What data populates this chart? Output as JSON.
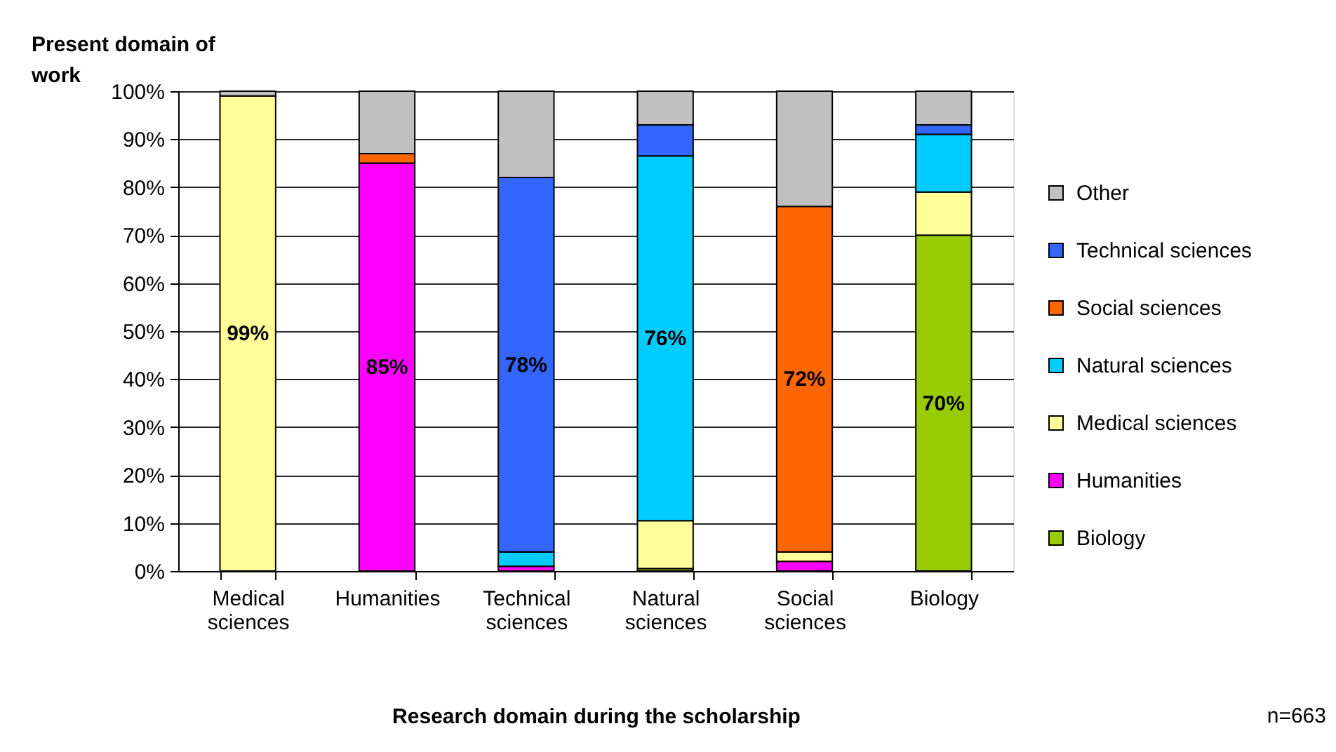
{
  "chart_data": {
    "type": "bar",
    "stacked": true,
    "ylabel": "Present domain of work",
    "xlabel": "Research domain during the scholarship",
    "annotations": [
      "n=663"
    ],
    "categories": [
      "Medical sciences",
      "Humanities",
      "Technical sciences",
      "Natural sciences",
      "Social sciences",
      "Biology"
    ],
    "series": [
      {
        "name": "Biology",
        "color": "#99cc00",
        "values": [
          null,
          null,
          null,
          0.5,
          null,
          70
        ],
        "value_labels": [
          null,
          null,
          null,
          null,
          null,
          "70%"
        ]
      },
      {
        "name": "Humanities",
        "color": "#ff00ff",
        "values": [
          null,
          85,
          1,
          null,
          2,
          null
        ],
        "value_labels": [
          null,
          "85%",
          null,
          null,
          null,
          null
        ]
      },
      {
        "name": "Medical sciences",
        "color": "#ffff99",
        "values": [
          99,
          null,
          null,
          10,
          2,
          9
        ],
        "value_labels": [
          "99%",
          null,
          null,
          null,
          null,
          null
        ]
      },
      {
        "name": "Natural sciences",
        "color": "#00ccff",
        "values": [
          null,
          null,
          3,
          76,
          null,
          12
        ],
        "value_labels": [
          null,
          null,
          null,
          "76%",
          null,
          null
        ]
      },
      {
        "name": "Social sciences",
        "color": "#ff6600",
        "values": [
          null,
          2,
          null,
          null,
          72,
          null
        ],
        "value_labels": [
          null,
          null,
          null,
          null,
          "72%",
          null
        ]
      },
      {
        "name": "Technical sciences",
        "color": "#3366ff",
        "values": [
          null,
          null,
          78,
          6.5,
          null,
          2
        ],
        "value_labels": [
          null,
          null,
          "78%",
          null,
          null,
          null
        ]
      },
      {
        "name": "Other",
        "color": "#c0c0c0",
        "values": [
          1,
          13,
          18,
          7,
          24,
          7
        ]
      }
    ],
    "ylim": [
      0,
      100
    ],
    "yticks": [
      {
        "value": 0,
        "label": "0%"
      },
      {
        "value": 10,
        "label": "10%"
      },
      {
        "value": 20,
        "label": "20%"
      },
      {
        "value": 30,
        "label": "30%"
      },
      {
        "value": 40,
        "label": "40%"
      },
      {
        "value": 50,
        "label": "50%"
      },
      {
        "value": 60,
        "label": "60%"
      },
      {
        "value": 70,
        "label": "70%"
      },
      {
        "value": 80,
        "label": "80%"
      },
      {
        "value": 90,
        "label": "90%"
      },
      {
        "value": 100,
        "label": "100%"
      }
    ],
    "grid": "y",
    "legend": "right"
  }
}
